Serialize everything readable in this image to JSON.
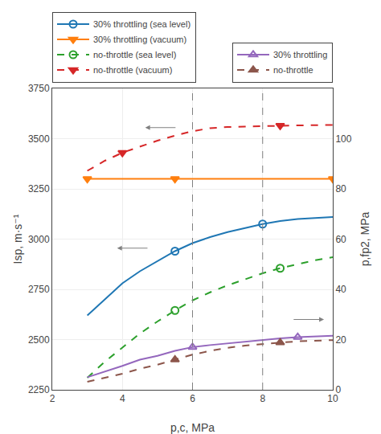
{
  "chart_data": {
    "type": "line",
    "xlabel": "p,c, MPa",
    "ylabel": "Isp, m·s⁻¹",
    "y2label": "p,fp2, MPa",
    "xlim": [
      2,
      10
    ],
    "ylim": [
      2250,
      3750
    ],
    "y2lim": [
      0,
      120
    ],
    "xticks": [
      2,
      4,
      6,
      8,
      10
    ],
    "yticks": [
      2250,
      2500,
      2750,
      3000,
      3250,
      3500,
      3750
    ],
    "y2ticks": [
      0,
      20,
      40,
      60,
      80,
      100
    ],
    "grid": true,
    "vlines": [
      6,
      8
    ],
    "arrows": [
      {
        "x": 4.65,
        "y": 3555,
        "from_x": 5.55,
        "from_y": 3555
      },
      {
        "x": 3.85,
        "y": 2955,
        "from_x": 4.75,
        "from_y": 2955
      },
      {
        "x": 9.75,
        "y": 2600,
        "from_x": 8.85,
        "from_y": 2600
      }
    ],
    "series": [
      {
        "name": "30% throttling (sea level)",
        "legend": "upper left",
        "line_style": "solid",
        "marker": "circle-open",
        "x": [
          3.0,
          3.5,
          4.0,
          4.5,
          5.0,
          5.5,
          6.0,
          6.5,
          7.0,
          7.5,
          8.0,
          8.5,
          9.0,
          9.5,
          10.0
        ],
        "values": [
          2620,
          2700,
          2780,
          2840,
          2890,
          2940,
          2980,
          3010,
          3035,
          3055,
          3075,
          3090,
          3100,
          3105,
          3110
        ],
        "marker_x": [
          5.5,
          8.0
        ],
        "marker_values": [
          2940,
          3075
        ]
      },
      {
        "name": "30% throttling (vacuum)",
        "legend": "upper left",
        "line_style": "solid",
        "marker": "triangle-down",
        "x": [
          3.0,
          10.0
        ],
        "values": [
          3300,
          3300
        ],
        "marker_x": [
          3.0,
          5.5,
          10.0
        ],
        "marker_values": [
          3300,
          3300,
          3300
        ]
      },
      {
        "name": "no-throttle (sea level)",
        "legend": "upper left",
        "line_style": "dash",
        "marker": "circle-open",
        "x": [
          3.0,
          3.5,
          4.0,
          4.5,
          5.0,
          5.5,
          6.0,
          6.5,
          7.0,
          7.5,
          8.0,
          8.5,
          9.0,
          9.5,
          10.0
        ],
        "values": [
          2310,
          2390,
          2460,
          2530,
          2590,
          2645,
          2695,
          2735,
          2770,
          2800,
          2830,
          2855,
          2875,
          2895,
          2910
        ],
        "marker_x": [
          5.5,
          8.5
        ],
        "marker_values": [
          2645,
          2855
        ]
      },
      {
        "name": "no-throttle (vacuum)",
        "legend": "upper left",
        "line_style": "dash",
        "marker": "triangle-down",
        "x": [
          3.0,
          3.5,
          4.0,
          4.5,
          5.0,
          5.5,
          6.0,
          6.5,
          7.0,
          7.5,
          8.0,
          8.5,
          9.0,
          9.5,
          10.0
        ],
        "values": [
          3340,
          3390,
          3430,
          3460,
          3490,
          3515,
          3537,
          3552,
          3558,
          3560,
          3563,
          3565,
          3566,
          3567,
          3568
        ],
        "marker_x": [
          4.0,
          8.5
        ],
        "marker_values": [
          3430,
          3565
        ]
      },
      {
        "name": "30% throttling",
        "axis": "y2",
        "legend": "upper right",
        "line_style": "solid",
        "marker": "triangle-up-open",
        "x": [
          3.0,
          3.5,
          4.0,
          4.5,
          5.0,
          5.5,
          6.0,
          6.5,
          7.0,
          7.5,
          8.0,
          8.5,
          9.0,
          9.5,
          10.0
        ],
        "values": [
          5.0,
          7.2,
          9.5,
          12.0,
          13.5,
          15.5,
          17.0,
          17.8,
          18.5,
          19.2,
          19.8,
          20.5,
          21.0,
          21.3,
          21.5
        ],
        "marker_x": [
          6.0,
          9.0
        ],
        "marker_values": [
          17.0,
          21.0
        ]
      },
      {
        "name": "no-throttle",
        "axis": "y2",
        "legend": "upper right",
        "line_style": "dash",
        "marker": "triangle-up",
        "x": [
          3.0,
          3.5,
          4.0,
          4.5,
          5.0,
          5.5,
          6.0,
          6.5,
          7.0,
          7.5,
          8.0,
          8.5,
          9.0,
          9.5,
          10.0
        ],
        "values": [
          3.2,
          4.8,
          6.4,
          8.4,
          10.0,
          12.0,
          14.0,
          15.5,
          16.7,
          17.6,
          18.3,
          18.8,
          19.3,
          19.6,
          19.8
        ],
        "marker_x": [
          5.5,
          8.5
        ],
        "marker_values": [
          12.0,
          18.8
        ]
      }
    ]
  }
}
